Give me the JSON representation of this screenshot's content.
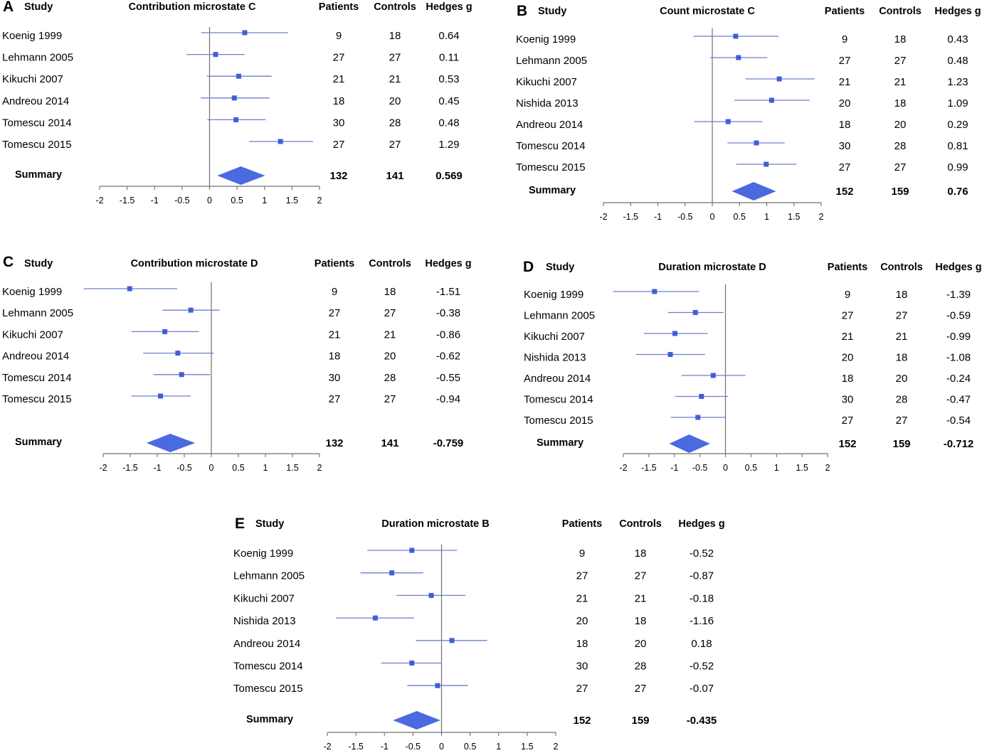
{
  "chart_data": [
    {
      "type": "forest",
      "panel": "A",
      "title": "Contribution microstate C",
      "headers": {
        "study": "Study",
        "patients": "Patients",
        "controls": "Controls",
        "effect": "Hedges g"
      },
      "xlim": [
        -2,
        2
      ],
      "ticks": [
        "-2",
        "-1.5",
        "-1",
        "-0.5",
        "0",
        "0.5",
        "1",
        "1.5",
        "2"
      ],
      "studies": [
        {
          "name": "Koenig 1999",
          "patients": "9",
          "controls": "18",
          "g_label": "0.64",
          "g": 0.64,
          "ci": [
            -0.15,
            1.43
          ]
        },
        {
          "name": "Lehmann 2005",
          "patients": "27",
          "controls": "27",
          "g_label": "0.11",
          "g": 0.11,
          "ci": [
            -0.42,
            0.64
          ]
        },
        {
          "name": "Kikuchi 2007",
          "patients": "21",
          "controls": "21",
          "g_label": "0.53",
          "g": 0.53,
          "ci": [
            -0.05,
            1.13
          ]
        },
        {
          "name": "Andreou 2014",
          "patients": "18",
          "controls": "20",
          "g_label": "0.45",
          "g": 0.45,
          "ci": [
            -0.16,
            1.09
          ]
        },
        {
          "name": "Tomescu 2014",
          "patients": "30",
          "controls": "28",
          "g_label": "0.48",
          "g": 0.48,
          "ci": [
            -0.04,
            1.02
          ]
        },
        {
          "name": "Tomescu 2015",
          "patients": "27",
          "controls": "27",
          "g_label": "1.29",
          "g": 1.29,
          "ci": [
            0.72,
            1.88
          ]
        }
      ],
      "summary": {
        "label": "Summary",
        "patients": "132",
        "controls": "141",
        "g_label": "0.569",
        "g": 0.569,
        "ci": [
          0.14,
          1.01
        ]
      }
    },
    {
      "type": "forest",
      "panel": "B",
      "title": "Count microstate C",
      "headers": {
        "study": "Study",
        "patients": "Patients",
        "controls": "Controls",
        "effect": "Hedges g"
      },
      "xlim": [
        -2,
        2
      ],
      "ticks": [
        "-2",
        "-1.5",
        "-1",
        "-0.5",
        "0",
        "0.5",
        "1",
        "1.5",
        "2"
      ],
      "studies": [
        {
          "name": "Koenig 1999",
          "patients": "9",
          "controls": "18",
          "g_label": "0.43",
          "g": 0.43,
          "ci": [
            -0.35,
            1.22
          ]
        },
        {
          "name": "Lehmann 2005",
          "patients": "27",
          "controls": "27",
          "g_label": "0.48",
          "g": 0.48,
          "ci": [
            -0.04,
            1.01
          ]
        },
        {
          "name": "Kikuchi 2007",
          "patients": "21",
          "controls": "21",
          "g_label": "1.23",
          "g": 1.23,
          "ci": [
            0.61,
            1.88
          ]
        },
        {
          "name": "Nishida 2013",
          "patients": "20",
          "controls": "18",
          "g_label": "1.09",
          "g": 1.09,
          "ci": [
            0.4,
            1.79
          ]
        },
        {
          "name": "Andreou 2014",
          "patients": "18",
          "controls": "20",
          "g_label": "0.29",
          "g": 0.29,
          "ci": [
            -0.33,
            0.92
          ]
        },
        {
          "name": "Tomescu 2014",
          "patients": "30",
          "controls": "28",
          "g_label": "0.81",
          "g": 0.81,
          "ci": [
            0.28,
            1.33
          ]
        },
        {
          "name": "Tomescu 2015",
          "patients": "27",
          "controls": "27",
          "g_label": "0.99",
          "g": 0.99,
          "ci": [
            0.44,
            1.55
          ]
        }
      ],
      "summary": {
        "label": "Summary",
        "patients": "152",
        "controls": "159",
        "g_label": "0.76",
        "g": 0.76,
        "ci": [
          0.36,
          1.17
        ]
      }
    },
    {
      "type": "forest",
      "panel": "C",
      "title": "Contribution microstate D",
      "headers": {
        "study": "Study",
        "patients": "Patients",
        "controls": "Controls",
        "effect": "Hedges g"
      },
      "xlim": [
        -2,
        2
      ],
      "ticks": [
        "-2",
        "-1.5",
        "-1",
        "-0.5",
        "0",
        "0.5",
        "1",
        "1.5",
        "2"
      ],
      "studies": [
        {
          "name": "Koenig 1999",
          "patients": "9",
          "controls": "18",
          "g_label": "-1.51",
          "g": -1.51,
          "ci": [
            -2.36,
            -0.63
          ]
        },
        {
          "name": "Lehmann 2005",
          "patients": "27",
          "controls": "27",
          "g_label": "-0.38",
          "g": -0.38,
          "ci": [
            -0.9,
            0.15
          ]
        },
        {
          "name": "Kikuchi 2007",
          "patients": "21",
          "controls": "21",
          "g_label": "-0.86",
          "g": -0.86,
          "ci": [
            -1.48,
            -0.23
          ]
        },
        {
          "name": "Andreou 2014",
          "patients": "18",
          "controls": "20",
          "g_label": "-0.62",
          "g": -0.62,
          "ci": [
            -1.26,
            0.04
          ]
        },
        {
          "name": "Tomescu 2014",
          "patients": "30",
          "controls": "28",
          "g_label": "-0.55",
          "g": -0.55,
          "ci": [
            -1.07,
            -0.02
          ]
        },
        {
          "name": "Tomescu 2015",
          "patients": "27",
          "controls": "27",
          "g_label": "-0.94",
          "g": -0.94,
          "ci": [
            -1.48,
            -0.38
          ]
        }
      ],
      "summary": {
        "label": "Summary",
        "patients": "132",
        "controls": "141",
        "g_label": "-0.759",
        "g": -0.759,
        "ci": [
          -1.2,
          -0.3
        ]
      }
    },
    {
      "type": "forest",
      "panel": "D",
      "title": "Duration microstate D",
      "headers": {
        "study": "Study",
        "patients": "Patients",
        "controls": "Controls",
        "effect": "Hedges g"
      },
      "xlim": [
        -2,
        2
      ],
      "ticks": [
        "-2",
        "-1.5",
        "-1",
        "-0.5",
        "0",
        "0.5",
        "1",
        "1.5",
        "2"
      ],
      "studies": [
        {
          "name": "Koenig 1999",
          "patients": "9",
          "controls": "18",
          "g_label": "-1.39",
          "g": -1.39,
          "ci": [
            -2.2,
            -0.52
          ]
        },
        {
          "name": "Lehmann 2005",
          "patients": "27",
          "controls": "27",
          "g_label": "-0.59",
          "g": -0.59,
          "ci": [
            -1.13,
            -0.04
          ]
        },
        {
          "name": "Kikuchi 2007",
          "patients": "21",
          "controls": "21",
          "g_label": "-0.99",
          "g": -0.99,
          "ci": [
            -1.6,
            -0.35
          ]
        },
        {
          "name": "Nishida 2013",
          "patients": "20",
          "controls": "18",
          "g_label": "-1.08",
          "g": -1.08,
          "ci": [
            -1.75,
            -0.4
          ]
        },
        {
          "name": "Andreou 2014",
          "patients": "18",
          "controls": "20",
          "g_label": "-0.24",
          "g": -0.24,
          "ci": [
            -0.86,
            0.39
          ]
        },
        {
          "name": "Tomescu 2014",
          "patients": "30",
          "controls": "28",
          "g_label": "-0.47",
          "g": -0.47,
          "ci": [
            -0.99,
            0.05
          ]
        },
        {
          "name": "Tomescu 2015",
          "patients": "27",
          "controls": "27",
          "g_label": "-0.54",
          "g": -0.54,
          "ci": [
            -1.07,
            0.0
          ]
        }
      ],
      "summary": {
        "label": "Summary",
        "patients": "152",
        "controls": "159",
        "g_label": "-0.712",
        "g": -0.712,
        "ci": [
          -1.1,
          -0.3
        ]
      }
    },
    {
      "type": "forest",
      "panel": "E",
      "title": "Duration microstate B",
      "headers": {
        "study": "Study",
        "patients": "Patients",
        "controls": "Controls",
        "effect": "Hedges g"
      },
      "xlim": [
        -2,
        2
      ],
      "ticks": [
        "-2",
        "-1.5",
        "-1",
        "-0.5",
        "0",
        "0.5",
        "1",
        "1.5",
        "2"
      ],
      "studies": [
        {
          "name": "Koenig 1999",
          "patients": "9",
          "controls": "18",
          "g_label": "-0.52",
          "g": -0.52,
          "ci": [
            -1.3,
            0.27
          ]
        },
        {
          "name": "Lehmann 2005",
          "patients": "27",
          "controls": "27",
          "g_label": "-0.87",
          "g": -0.87,
          "ci": [
            -1.42,
            -0.32
          ]
        },
        {
          "name": "Kikuchi 2007",
          "patients": "21",
          "controls": "21",
          "g_label": "-0.18",
          "g": -0.18,
          "ci": [
            -0.79,
            0.42
          ]
        },
        {
          "name": "Nishida 2013",
          "patients": "20",
          "controls": "18",
          "g_label": "-1.16",
          "g": -1.16,
          "ci": [
            -1.85,
            -0.48
          ]
        },
        {
          "name": "Andreou 2014",
          "patients": "18",
          "controls": "20",
          "g_label": "0.18",
          "g": 0.18,
          "ci": [
            -0.45,
            0.8
          ]
        },
        {
          "name": "Tomescu 2014",
          "patients": "30",
          "controls": "28",
          "g_label": "-0.52",
          "g": -0.52,
          "ci": [
            -1.06,
            0.0
          ]
        },
        {
          "name": "Tomescu 2015",
          "patients": "27",
          "controls": "27",
          "g_label": "-0.07",
          "g": -0.07,
          "ci": [
            -0.6,
            0.46
          ]
        }
      ],
      "summary": {
        "label": "Summary",
        "patients": "152",
        "controls": "159",
        "g_label": "-0.435",
        "g": -0.435,
        "ci": [
          -0.85,
          -0.02
        ]
      }
    }
  ],
  "colors": {
    "marker": "#3f5fd8",
    "ci_line": "#6b7fd0",
    "diamond": "#4a6ae0",
    "axis": "#707070",
    "text": "#000000"
  }
}
